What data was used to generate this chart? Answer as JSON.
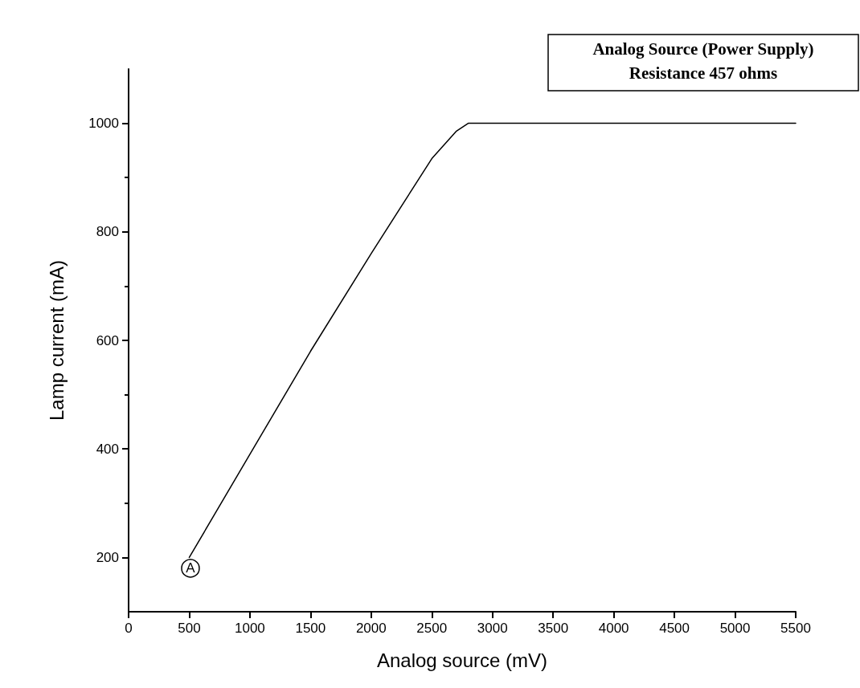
{
  "chart_data": {
    "type": "line",
    "xlabel": "Analog source (mV)",
    "ylabel": "Lamp current (mA)",
    "annotations": [
      "Analog Source (Power Supply)\nResistance 457 ohms",
      {
        "text": "A",
        "x": 510,
        "y": 180
      }
    ],
    "x": [
      500,
      1000,
      1500,
      2000,
      2500,
      2700,
      2800,
      5500
    ],
    "series": [
      {
        "color": "#000000",
        "values": [
          200,
          390,
          580,
          760,
          935,
          985,
          1000,
          1000
        ]
      }
    ],
    "xlim": [
      0,
      5500
    ],
    "xticks": [
      0,
      500,
      1000,
      1500,
      2000,
      2500,
      3000,
      3500,
      4000,
      4500,
      5000,
      5500
    ],
    "ylim": [
      100,
      1100
    ],
    "yticks": [
      200,
      400,
      600,
      800,
      1000
    ],
    "grid": false,
    "marker": "none",
    "line_style": "solid"
  }
}
